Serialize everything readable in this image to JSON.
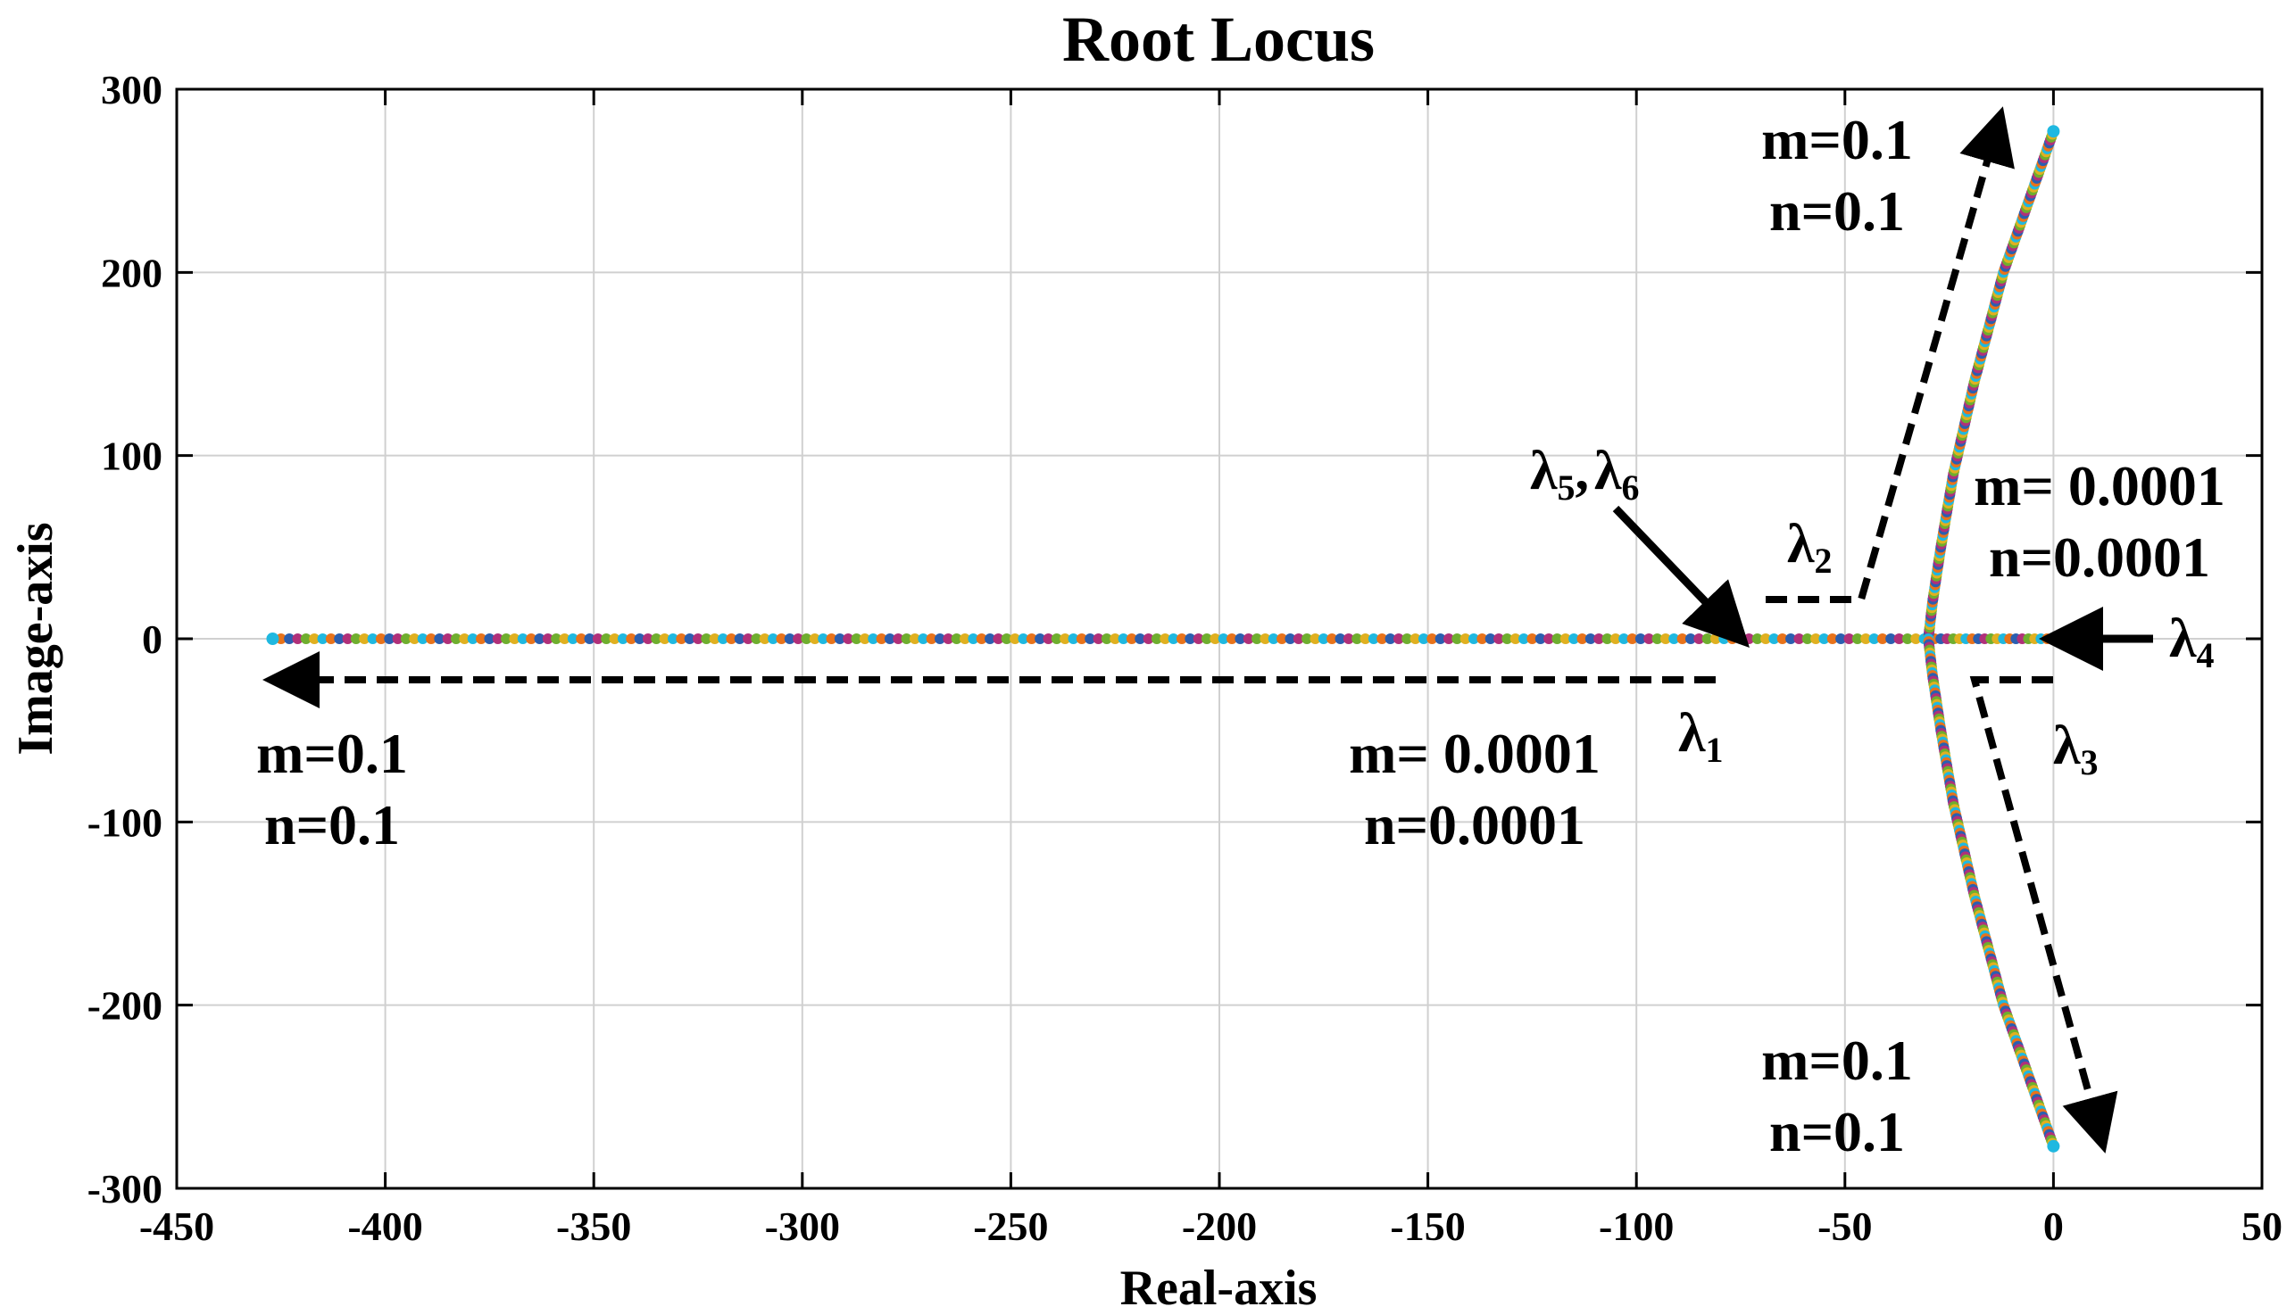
{
  "chart_data": {
    "type": "scatter",
    "title": "Root Locus",
    "xlabel": "Real-axis",
    "ylabel": "Image-axis",
    "xlim": [
      -450,
      50
    ],
    "ylim": [
      -300,
      300
    ],
    "x_ticks": [
      -450,
      -400,
      -350,
      -300,
      -250,
      -200,
      -150,
      -100,
      -50,
      0,
      50
    ],
    "x_tick_labels": [
      "-450",
      "-400",
      "-350",
      "-300",
      "-250",
      "-200",
      "-150",
      "-100",
      "-50",
      "0",
      "50"
    ],
    "y_ticks": [
      300,
      200,
      100,
      0,
      -100,
      -200,
      -300
    ],
    "y_tick_labels": [
      "300",
      "200",
      "100",
      "0",
      "-100",
      "-200",
      "-300"
    ],
    "grid": true,
    "point_colors": [
      "#1fb8e0",
      "#e8731a",
      "#2b5fb0",
      "#b0307a",
      "#6fae2e",
      "#e0b020"
    ],
    "loci": {
      "lambda1_real_range": [
        -427,
        -30
      ],
      "lambda4_real_range": [
        -30,
        0
      ],
      "lambda2_path": [
        [
          -30,
          0
        ],
        [
          -29,
          20
        ],
        [
          -27,
          50
        ],
        [
          -24,
          90
        ],
        [
          -19,
          140
        ],
        [
          -12,
          200
        ],
        [
          0,
          277
        ]
      ],
      "lambda3_path": [
        [
          -30,
          0
        ],
        [
          -29,
          -20
        ],
        [
          -27,
          -50
        ],
        [
          -24,
          -90
        ],
        [
          -19,
          -140
        ],
        [
          -12,
          -200
        ],
        [
          0,
          -277
        ]
      ],
      "start_points": [
        [
          -427,
          0
        ],
        [
          0,
          277
        ],
        [
          0,
          -277
        ],
        [
          0,
          0
        ]
      ]
    },
    "annotations": {
      "top_right": {
        "m": "m=0.1",
        "n": "n=0.1"
      },
      "bottom_right": {
        "m": "m=0.1",
        "n": "n=0.1"
      },
      "left": {
        "m": "m=0.1",
        "n": "n=0.1"
      },
      "middle": {
        "m": "m= 0.0001",
        "n": "n=0.0001"
      },
      "right_mid": {
        "m": "m= 0.0001",
        "n": "n=0.0001"
      }
    },
    "lambda_labels": {
      "lam1": {
        "base": "λ",
        "sub": "1"
      },
      "lam2": {
        "base": "λ",
        "sub": "2"
      },
      "lam3": {
        "base": "λ",
        "sub": "3"
      },
      "lam4": {
        "base": "λ",
        "sub": "4"
      },
      "lam5": {
        "base": "λ",
        "sub": "5"
      },
      "lam6": {
        "base": "λ",
        "sub": "6"
      },
      "sep": ","
    }
  }
}
